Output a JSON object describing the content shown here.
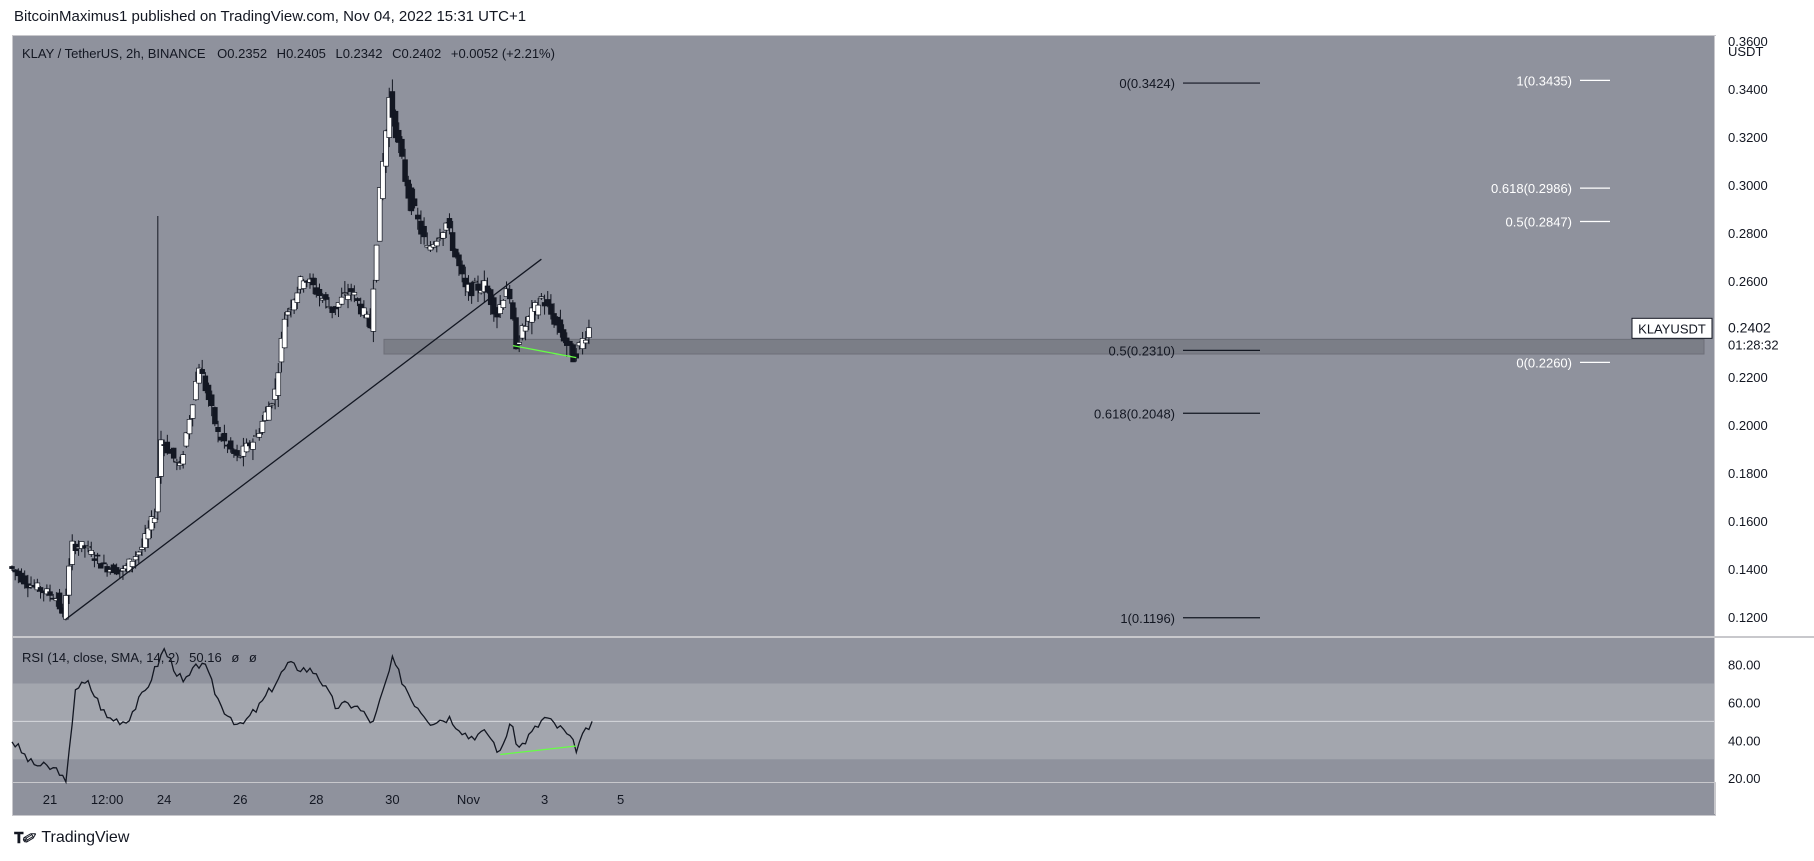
{
  "header": {
    "publish_line": "BitcoinMaximus1 published on TradingView.com, Nov 04, 2022 15:31 UTC+1"
  },
  "legend": {
    "symbol": "KLAY / TetherUS, 2h, BINANCE",
    "o_label": "O",
    "o_value": "0.2352",
    "h_label": "H",
    "h_value": "0.2405",
    "l_label": "L",
    "l_value": "0.2342",
    "c_label": "C",
    "c_value": "0.2402",
    "change": "+0.0052 (+2.21%)"
  },
  "price_axis": {
    "currency": "USDT",
    "ticks": [
      "0.3600",
      "0.3400",
      "0.3200",
      "0.3000",
      "0.2800",
      "0.2600",
      "0.2400",
      "0.2200",
      "0.2000",
      "0.1800",
      "0.1600",
      "0.1400",
      "0.1200"
    ]
  },
  "last_price": {
    "symbol_tag": "KLAYUSDT",
    "price": "0.2402",
    "countdown": "01:28:32"
  },
  "fib_left": [
    {
      "label": "0(0.3424)",
      "value": 0.3424
    },
    {
      "label": "0.5(0.2310)",
      "value": 0.231
    },
    {
      "label": "0.618(0.2048)",
      "value": 0.2048
    },
    {
      "label": "1(0.1196)",
      "value": 0.1196
    }
  ],
  "fib_right": [
    {
      "label": "1(0.3435)",
      "value": 0.3435
    },
    {
      "label": "0.618(0.2986)",
      "value": 0.2986
    },
    {
      "label": "0.5(0.2847)",
      "value": 0.2847
    },
    {
      "label": "0(0.2260)",
      "value": 0.226
    }
  ],
  "rsi": {
    "legend": "RSI (14, close, SMA, 14, 2)",
    "value": "50.16",
    "na1": "ø",
    "na2": "ø",
    "ticks": [
      "80.00",
      "60.00",
      "40.00",
      "20.00"
    ]
  },
  "time_axis": {
    "labels": [
      "21",
      "12:00",
      "24",
      "26",
      "28",
      "30",
      "Nov",
      "3",
      "5"
    ]
  },
  "footer": {
    "brand": "TradingView"
  },
  "colors": {
    "background": "#8f929d",
    "up_candle": "#ffffff",
    "down_candle": "#131722",
    "support_zone": "#7b7e87",
    "divergence": "#66ff44",
    "rsi_band": "#a3a6ae"
  },
  "chart_data": {
    "type": "candlestick",
    "timeframe": "2h",
    "ylim": [
      0.112,
      0.362
    ],
    "support_zone": [
      0.2295,
      0.2356
    ],
    "trendline": {
      "from": {
        "date": "Oct 21 10:00",
        "price": 0.119
      },
      "to": {
        "date": "Nov 02 22:00",
        "price": 0.269
      }
    },
    "price_divergence": {
      "from": {
        "date": "Nov 02 04:00",
        "price": 0.233
      },
      "to": {
        "date": "Nov 03 20:00",
        "price": 0.228
      }
    },
    "rsi_divergence": {
      "from": {
        "date": "Nov 01 20:00",
        "value": 32.5
      },
      "to": {
        "date": "Nov 03 20:00",
        "value": 37
      }
    },
    "rsi_ylim": [
      18,
      94
    ],
    "rsi_band": [
      30,
      70
    ],
    "rsi_midline": 50,
    "price_path": [
      [
        "Oct 20 00:00",
        0.141
      ],
      [
        "Oct 20 12:00",
        0.134
      ],
      [
        "Oct 21 06:00",
        0.128
      ],
      [
        "Oct 21 10:00",
        0.12
      ],
      [
        "Oct 21 16:00",
        0.15
      ],
      [
        "Oct 22 00:00",
        0.149
      ],
      [
        "Oct 22 12:00",
        0.141
      ],
      [
        "Oct 23 00:00",
        0.139
      ],
      [
        "Oct 23 12:00",
        0.149
      ],
      [
        "Oct 23 20:00",
        0.163
      ],
      [
        "Oct 24 00:00",
        0.194
      ],
      [
        "Oct 24 12:00",
        0.182
      ],
      [
        "Oct 25 00:00",
        0.225
      ],
      [
        "Oct 25 12:00",
        0.196
      ],
      [
        "Oct 26 00:00",
        0.186
      ],
      [
        "Oct 26 12:00",
        0.195
      ],
      [
        "Oct 27 00:00",
        0.214
      ],
      [
        "Oct 27 06:00",
        0.245
      ],
      [
        "Oct 27 18:00",
        0.262
      ],
      [
        "Oct 28 12:00",
        0.248
      ],
      [
        "Oct 29 00:00",
        0.256
      ],
      [
        "Oct 29 12:00",
        0.241
      ],
      [
        "Oct 29 18:00",
        0.296
      ],
      [
        "Oct 30 00:00",
        0.336
      ],
      [
        "Oct 30 12:00",
        0.296
      ],
      [
        "Oct 31 00:00",
        0.273
      ],
      [
        "Oct 31 12:00",
        0.284
      ],
      [
        "Nov 01 00:00",
        0.256
      ],
      [
        "Nov 01 12:00",
        0.258
      ],
      [
        "Nov 01 20:00",
        0.246
      ],
      [
        "Nov 02 02:00",
        0.258
      ],
      [
        "Nov 02 08:00",
        0.234
      ],
      [
        "Nov 02 16:00",
        0.244
      ],
      [
        "Nov 03 00:00",
        0.253
      ],
      [
        "Nov 03 12:00",
        0.239
      ],
      [
        "Nov 03 20:00",
        0.228
      ],
      [
        "Nov 04 06:00",
        0.2402
      ]
    ],
    "rsi_path": [
      [
        "Oct 20 00:00",
        40
      ],
      [
        "Oct 20 12:00",
        28
      ],
      [
        "Oct 21 06:00",
        24
      ],
      [
        "Oct 21 10:00",
        15
      ],
      [
        "Oct 21 16:00",
        68
      ],
      [
        "Oct 22 00:00",
        70
      ],
      [
        "Oct 22 12:00",
        52
      ],
      [
        "Oct 23 00:00",
        50
      ],
      [
        "Oct 23 12:00",
        66
      ],
      [
        "Oct 24 00:00",
        88
      ],
      [
        "Oct 24 12:00",
        70
      ],
      [
        "Oct 25 00:00",
        82
      ],
      [
        "Oct 25 12:00",
        58
      ],
      [
        "Oct 26 00:00",
        47
      ],
      [
        "Oct 26 12:00",
        58
      ],
      [
        "Oct 27 06:00",
        80
      ],
      [
        "Oct 28 00:00",
        76
      ],
      [
        "Oct 28 12:00",
        58
      ],
      [
        "Oct 29 00:00",
        59
      ],
      [
        "Oct 29 12:00",
        49
      ],
      [
        "Oct 30 00:00",
        82
      ],
      [
        "Oct 30 12:00",
        62
      ],
      [
        "Oct 31 00:00",
        50
      ],
      [
        "Oct 31 12:00",
        52
      ],
      [
        "Nov 01 00:00",
        42
      ],
      [
        "Nov 01 12:00",
        44
      ],
      [
        "Nov 01 20:00",
        33
      ],
      [
        "Nov 02 02:00",
        49
      ],
      [
        "Nov 02 08:00",
        36
      ],
      [
        "Nov 02 16:00",
        44
      ],
      [
        "Nov 03 00:00",
        52
      ],
      [
        "Nov 03 12:00",
        45
      ],
      [
        "Nov 03 20:00",
        36
      ],
      [
        "Nov 04 06:00",
        50
      ]
    ]
  }
}
